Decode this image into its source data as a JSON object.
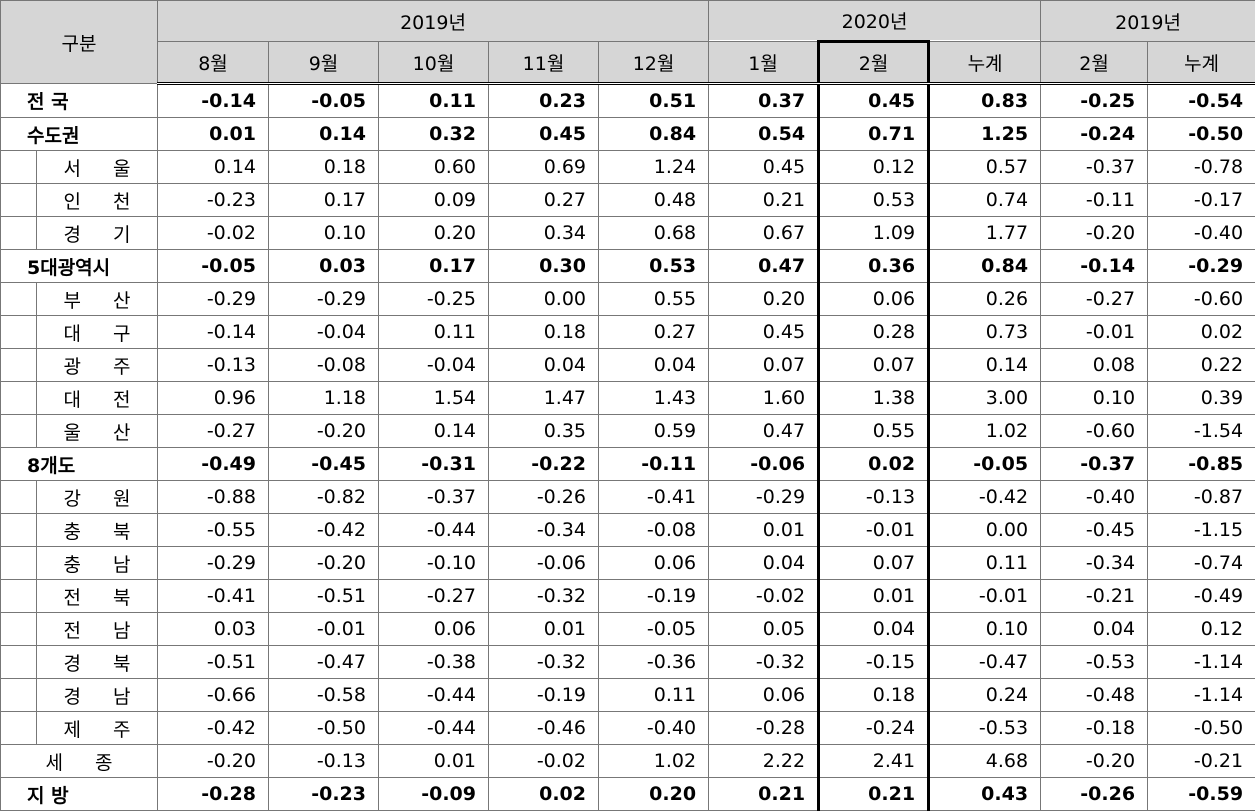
{
  "table": {
    "corner": "구분",
    "groups": [
      {
        "label": "2019년",
        "columns": [
          "8월",
          "9월",
          "10월",
          "11월",
          "12월"
        ]
      },
      {
        "label": "2020년",
        "columns": [
          "1월",
          "2월",
          "누계"
        ]
      },
      {
        "label": "2019년",
        "columns": [
          "2월",
          "누계"
        ]
      }
    ],
    "rows": [
      {
        "label": "전 국",
        "values": [
          "-0.14",
          "-0.05",
          "0.11",
          "0.23",
          "0.51",
          "0.37",
          "0.45",
          "0.83",
          "-0.25",
          "-0.54"
        ]
      },
      {
        "label": "수도권",
        "values": [
          "0.01",
          "0.14",
          "0.32",
          "0.45",
          "0.84",
          "0.54",
          "0.71",
          "1.25",
          "-0.24",
          "-0.50"
        ]
      },
      {
        "label": "서 울",
        "values": [
          "0.14",
          "0.18",
          "0.60",
          "0.69",
          "1.24",
          "0.45",
          "0.12",
          "0.57",
          "-0.37",
          "-0.78"
        ]
      },
      {
        "label": "인 천",
        "values": [
          "-0.23",
          "0.17",
          "0.09",
          "0.27",
          "0.48",
          "0.21",
          "0.53",
          "0.74",
          "-0.11",
          "-0.17"
        ]
      },
      {
        "label": "경 기",
        "values": [
          "-0.02",
          "0.10",
          "0.20",
          "0.34",
          "0.68",
          "0.67",
          "1.09",
          "1.77",
          "-0.20",
          "-0.40"
        ]
      },
      {
        "label": "5대광역시",
        "values": [
          "-0.05",
          "0.03",
          "0.17",
          "0.30",
          "0.53",
          "0.47",
          "0.36",
          "0.84",
          "-0.14",
          "-0.29"
        ]
      },
      {
        "label": "부 산",
        "values": [
          "-0.29",
          "-0.29",
          "-0.25",
          "0.00",
          "0.55",
          "0.20",
          "0.06",
          "0.26",
          "-0.27",
          "-0.60"
        ]
      },
      {
        "label": "대 구",
        "values": [
          "-0.14",
          "-0.04",
          "0.11",
          "0.18",
          "0.27",
          "0.45",
          "0.28",
          "0.73",
          "-0.01",
          "0.02"
        ]
      },
      {
        "label": "광 주",
        "values": [
          "-0.13",
          "-0.08",
          "-0.04",
          "0.04",
          "0.04",
          "0.07",
          "0.07",
          "0.14",
          "0.08",
          "0.22"
        ]
      },
      {
        "label": "대 전",
        "values": [
          "0.96",
          "1.18",
          "1.54",
          "1.47",
          "1.43",
          "1.60",
          "1.38",
          "3.00",
          "0.10",
          "0.39"
        ]
      },
      {
        "label": "울 산",
        "values": [
          "-0.27",
          "-0.20",
          "0.14",
          "0.35",
          "0.59",
          "0.47",
          "0.55",
          "1.02",
          "-0.60",
          "-1.54"
        ]
      },
      {
        "label": "8개도",
        "values": [
          "-0.49",
          "-0.45",
          "-0.31",
          "-0.22",
          "-0.11",
          "-0.06",
          "0.02",
          "-0.05",
          "-0.37",
          "-0.85"
        ]
      },
      {
        "label": "강 원",
        "values": [
          "-0.88",
          "-0.82",
          "-0.37",
          "-0.26",
          "-0.41",
          "-0.29",
          "-0.13",
          "-0.42",
          "-0.40",
          "-0.87"
        ]
      },
      {
        "label": "충 북",
        "values": [
          "-0.55",
          "-0.42",
          "-0.44",
          "-0.34",
          "-0.08",
          "0.01",
          "-0.01",
          "0.00",
          "-0.45",
          "-1.15"
        ]
      },
      {
        "label": "충 남",
        "values": [
          "-0.29",
          "-0.20",
          "-0.10",
          "-0.06",
          "0.06",
          "0.04",
          "0.07",
          "0.11",
          "-0.34",
          "-0.74"
        ]
      },
      {
        "label": "전 북",
        "values": [
          "-0.41",
          "-0.51",
          "-0.27",
          "-0.32",
          "-0.19",
          "-0.02",
          "0.01",
          "-0.01",
          "-0.21",
          "-0.49"
        ]
      },
      {
        "label": "전 남",
        "values": [
          "0.03",
          "-0.01",
          "0.06",
          "0.01",
          "-0.05",
          "0.05",
          "0.04",
          "0.10",
          "0.04",
          "0.12"
        ]
      },
      {
        "label": "경 북",
        "values": [
          "-0.51",
          "-0.47",
          "-0.38",
          "-0.32",
          "-0.36",
          "-0.32",
          "-0.15",
          "-0.47",
          "-0.53",
          "-1.14"
        ]
      },
      {
        "label": "경 남",
        "values": [
          "-0.66",
          "-0.58",
          "-0.44",
          "-0.19",
          "0.11",
          "0.06",
          "0.18",
          "0.24",
          "-0.48",
          "-1.14"
        ]
      },
      {
        "label": "제 주",
        "values": [
          "-0.42",
          "-0.50",
          "-0.44",
          "-0.46",
          "-0.40",
          "-0.28",
          "-0.24",
          "-0.53",
          "-0.18",
          "-0.50"
        ]
      },
      {
        "label": "세 종",
        "values": [
          "-0.20",
          "-0.13",
          "0.01",
          "-0.02",
          "1.02",
          "2.22",
          "2.41",
          "4.68",
          "-0.20",
          "-0.21"
        ]
      },
      {
        "label": "지 방",
        "values": [
          "-0.28",
          "-0.23",
          "-0.09",
          "0.02",
          "0.20",
          "0.21",
          "0.21",
          "0.43",
          "-0.26",
          "-0.59"
        ]
      }
    ]
  }
}
